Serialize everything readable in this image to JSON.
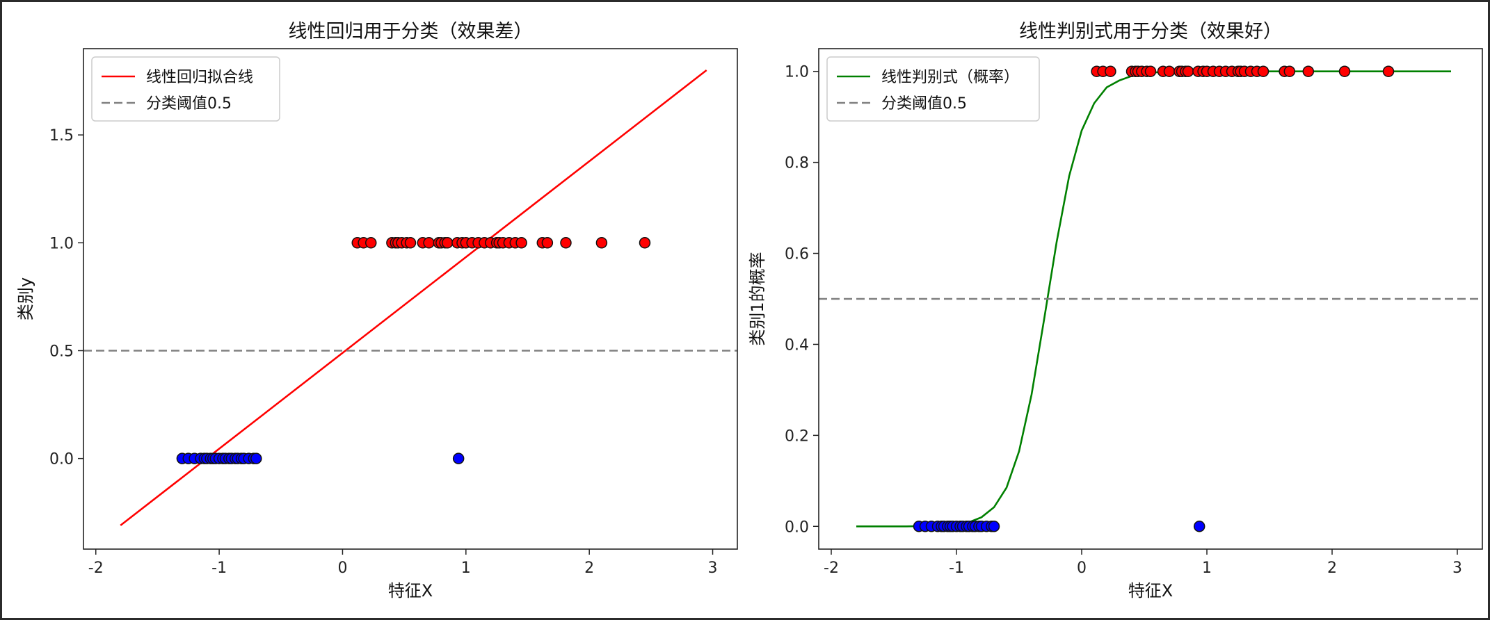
{
  "chart_data": [
    {
      "type": "scatter",
      "title": "线性回归用于分类（效果差）",
      "xlabel": "特征X",
      "ylabel": "类别y",
      "xlim": [
        -2.1,
        3.2
      ],
      "ylim": [
        -0.42,
        1.9
      ],
      "xticks": [
        -2,
        -1,
        0,
        1,
        2,
        3
      ],
      "xtick_labels": [
        "-2",
        "-1",
        "0",
        "1",
        "2",
        "3"
      ],
      "yticks": [
        0.0,
        0.5,
        1.0,
        1.5
      ],
      "ytick_labels": [
        "0.0",
        "0.5",
        "1.0",
        "1.5"
      ],
      "legend_position": "top-left",
      "legend": [
        {
          "label": "线性回归拟合线",
          "style": "solid",
          "color": "#ff0000"
        },
        {
          "label": "分类阈值0.5",
          "style": "dashed",
          "color": "#808080"
        }
      ],
      "lines": [
        {
          "name": "线性回归拟合线",
          "color": "#ff0000",
          "style": "solid",
          "x": [
            -1.8,
            2.95
          ],
          "y": [
            -0.31,
            1.8
          ]
        },
        {
          "name": "分类阈值0.5",
          "color": "#808080",
          "style": "dashed",
          "x": [
            -2.1,
            3.2
          ],
          "y": [
            0.5,
            0.5
          ]
        }
      ],
      "points": [
        {
          "name": "class0",
          "color": "#0000ff",
          "y": 0,
          "x": [
            -1.3,
            -1.25,
            -1.2,
            -1.15,
            -1.12,
            -1.1,
            -1.07,
            -1.05,
            -1.03,
            -1.0,
            -0.97,
            -0.95,
            -0.92,
            -0.9,
            -0.87,
            -0.85,
            -0.82,
            -0.8,
            -0.76,
            -0.72,
            -0.7,
            0.94
          ]
        },
        {
          "name": "class1",
          "color": "#ff0000",
          "y": 1,
          "x": [
            0.12,
            0.17,
            0.23,
            0.4,
            0.43,
            0.45,
            0.48,
            0.52,
            0.55,
            0.65,
            0.7,
            0.78,
            0.8,
            0.83,
            0.85,
            0.93,
            0.97,
            1.0,
            1.05,
            1.1,
            1.15,
            1.2,
            1.25,
            1.27,
            1.3,
            1.35,
            1.4,
            1.45,
            1.62,
            1.66,
            1.81,
            2.1,
            2.45
          ]
        }
      ]
    },
    {
      "type": "scatter",
      "title": "线性判别式用于分类（效果好）",
      "xlabel": "特征X",
      "ylabel": "类别1的概率",
      "xlim": [
        -2.1,
        3.2
      ],
      "ylim": [
        -0.05,
        1.05
      ],
      "xticks": [
        -2,
        -1,
        0,
        1,
        2,
        3
      ],
      "xtick_labels": [
        "-2",
        "-1",
        "0",
        "1",
        "2",
        "3"
      ],
      "yticks": [
        0.0,
        0.2,
        0.4,
        0.6,
        0.8,
        1.0
      ],
      "ytick_labels": [
        "0.0",
        "0.2",
        "0.4",
        "0.6",
        "0.8",
        "1.0"
      ],
      "legend_position": "top-left",
      "legend": [
        {
          "label": "线性判别式（概率）",
          "style": "solid",
          "color": "#008000"
        },
        {
          "label": "分类阈值0.5",
          "style": "dashed",
          "color": "#808080"
        }
      ],
      "lines": [
        {
          "name": "线性判别式（概率）",
          "color": "#008000",
          "style": "solid",
          "x": [
            -1.8,
            -1.6,
            -1.4,
            -1.2,
            -1.0,
            -0.9,
            -0.8,
            -0.7,
            -0.6,
            -0.5,
            -0.4,
            -0.3,
            -0.2,
            -0.1,
            0.0,
            0.1,
            0.2,
            0.3,
            0.4,
            0.5,
            0.6,
            0.7,
            0.8,
            0.9,
            1.0,
            1.2,
            1.5,
            2.0,
            2.5,
            2.95
          ],
          "y": [
            0.0,
            0.0,
            0.0,
            0.001,
            0.004,
            0.009,
            0.02,
            0.042,
            0.085,
            0.165,
            0.29,
            0.455,
            0.625,
            0.77,
            0.87,
            0.93,
            0.965,
            0.98,
            0.99,
            0.995,
            0.998,
            0.999,
            0.999,
            1.0,
            1.0,
            1.0,
            1.0,
            1.0,
            1.0,
            1.0
          ]
        },
        {
          "name": "分类阈值0.5",
          "color": "#808080",
          "style": "dashed",
          "x": [
            -2.1,
            3.2
          ],
          "y": [
            0.5,
            0.5
          ]
        }
      ],
      "points": [
        {
          "name": "class0",
          "color": "#0000ff",
          "y": 0,
          "x": [
            -1.3,
            -1.25,
            -1.2,
            -1.15,
            -1.12,
            -1.1,
            -1.07,
            -1.05,
            -1.03,
            -1.0,
            -0.97,
            -0.95,
            -0.92,
            -0.9,
            -0.87,
            -0.85,
            -0.82,
            -0.8,
            -0.76,
            -0.72,
            -0.7,
            0.94
          ]
        },
        {
          "name": "class1",
          "color": "#ff0000",
          "y": 1,
          "x": [
            0.12,
            0.17,
            0.23,
            0.4,
            0.43,
            0.45,
            0.48,
            0.52,
            0.55,
            0.65,
            0.7,
            0.78,
            0.8,
            0.83,
            0.85,
            0.93,
            0.97,
            1.0,
            1.05,
            1.1,
            1.15,
            1.2,
            1.25,
            1.27,
            1.3,
            1.35,
            1.4,
            1.45,
            1.62,
            1.66,
            1.81,
            2.1,
            2.45
          ]
        }
      ]
    }
  ]
}
